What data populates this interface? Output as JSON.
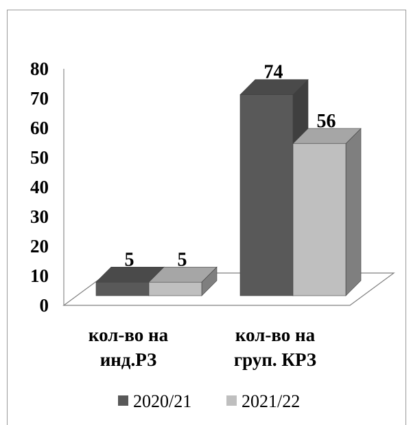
{
  "chart_data": {
    "type": "bar",
    "style": "3d-clustered-column",
    "categories": [
      [
        "кол-во на",
        "инд.РЗ"
      ],
      [
        "кол-во на",
        "груп. КРЗ"
      ]
    ],
    "series": [
      {
        "name": "2020/21",
        "values": [
          5,
          74
        ],
        "color": "#595959",
        "side": "#3f3f3f",
        "top": "#4a4a4a"
      },
      {
        "name": "2021/22",
        "values": [
          5,
          56
        ],
        "color": "#bfbfbf",
        "side": "#7f7f7f",
        "top": "#a6a6a6"
      }
    ],
    "ylim": [
      0,
      80
    ],
    "yticks": [
      "0",
      "10",
      "20",
      "30",
      "40",
      "50",
      "60",
      "70",
      "80"
    ],
    "data_labels": true,
    "legend": "bottom",
    "grid": false
  }
}
